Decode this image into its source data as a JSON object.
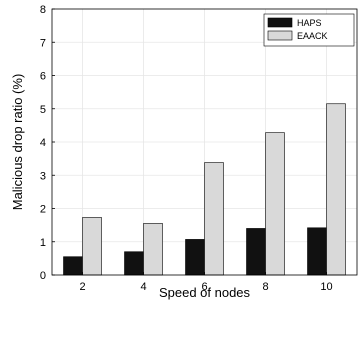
{
  "chart_data": {
    "type": "bar",
    "categories": [
      "2",
      "4",
      "6",
      "8",
      "10"
    ],
    "series": [
      {
        "name": "HAPS",
        "values": [
          0.55,
          0.7,
          1.07,
          1.4,
          1.42
        ],
        "color": "#111111"
      },
      {
        "name": "EAACK",
        "values": [
          1.73,
          1.55,
          3.38,
          4.28,
          5.15
        ],
        "color": "#d9d9d9"
      }
    ],
    "title": "",
    "xlabel": "Speed of nodes",
    "ylabel": "Malicious drop ratio (%)",
    "ylim": [
      0,
      8
    ],
    "yticks": [
      0,
      1,
      2,
      3,
      4,
      5,
      6,
      7,
      8
    ],
    "grid": true,
    "legend_position": "top-right"
  }
}
